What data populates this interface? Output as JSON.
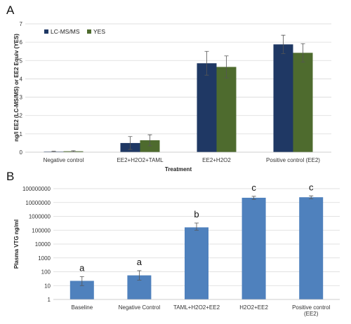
{
  "colors": {
    "lcms": "#1f3864",
    "yes": "#4e6b2e",
    "vtg": "#4f81bd"
  },
  "chart_data": [
    {
      "panel": "A",
      "type": "bar",
      "title": "",
      "xlabel": "Treatment",
      "ylabel": "ng/l EE2 (LC-MS/MS) or EE2 Equiv (YES)",
      "ylim": [
        0,
        7
      ],
      "yticks": [
        "0",
        "1",
        "2",
        "3",
        "4",
        "5",
        "6",
        "7"
      ],
      "grid": true,
      "legend_position": "top-left",
      "categories": [
        "Negative control",
        "EE2+H2O2+TAML",
        "EE2+H2O2",
        "Positive control (EE2)"
      ],
      "series": [
        {
          "name": "LC-MS/MS",
          "values": [
            0.03,
            0.5,
            4.85,
            5.88
          ],
          "errors": [
            0.02,
            0.35,
            0.65,
            0.5
          ]
        },
        {
          "name": "YES",
          "values": [
            0.05,
            0.65,
            4.65,
            5.42
          ],
          "errors": [
            0.03,
            0.3,
            0.6,
            0.5
          ]
        }
      ]
    },
    {
      "panel": "B",
      "type": "bar",
      "title": "",
      "xlabel": "",
      "ylabel": "Plasma VTG ng/ml",
      "yscale": "log",
      "ylim": [
        1,
        100000000
      ],
      "yticks": [
        "1",
        "10",
        "100",
        "1000",
        "10000",
        "100000",
        "1000000",
        "10000000",
        "100000000"
      ],
      "grid": true,
      "categories": [
        "Baseline",
        "Negative Control",
        "TAML+H2O2+EE2",
        "H2O2+EE2",
        "Positive control (EE2)"
      ],
      "values": [
        22,
        55,
        160000,
        22000000,
        24000000
      ],
      "error_low": [
        10,
        25,
        100000,
        17000000,
        19000000
      ],
      "error_high": [
        45,
        120,
        330000,
        28000000,
        30000000
      ],
      "significance": [
        "a",
        "a",
        "b",
        "c",
        "c"
      ]
    }
  ]
}
